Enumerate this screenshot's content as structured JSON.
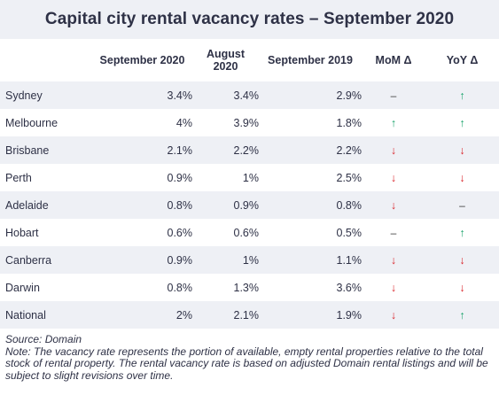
{
  "title": "Capital city rental vacancy rates – September 2020",
  "headers": {
    "city": "",
    "sep2020": "September 2020",
    "aug2020_line1": "August",
    "aug2020_line2": "2020",
    "sep2019": "September 2019",
    "mom": "MoM Δ",
    "yoy": "YoY Δ"
  },
  "rows": [
    {
      "city": "Sydney",
      "sep2020": "3.4%",
      "aug2020": "3.4%",
      "sep2019": "2.9%",
      "mom": "–",
      "yoy": "↑"
    },
    {
      "city": "Melbourne",
      "sep2020": "4%",
      "aug2020": "3.9%",
      "sep2019": "1.8%",
      "mom": "↑",
      "yoy": "↑"
    },
    {
      "city": "Brisbane",
      "sep2020": "2.1%",
      "aug2020": "2.2%",
      "sep2019": "2.2%",
      "mom": "↓",
      "yoy": "↓"
    },
    {
      "city": "Perth",
      "sep2020": "0.9%",
      "aug2020": "1%",
      "sep2019": "2.5%",
      "mom": "↓",
      "yoy": "↓"
    },
    {
      "city": "Adelaide",
      "sep2020": "0.8%",
      "aug2020": "0.9%",
      "sep2019": "0.8%",
      "mom": "↓",
      "yoy": "–"
    },
    {
      "city": "Hobart",
      "sep2020": "0.6%",
      "aug2020": "0.6%",
      "sep2019": "0.5%",
      "mom": "–",
      "yoy": "↑"
    },
    {
      "city": "Canberra",
      "sep2020": "0.9%",
      "aug2020": "1%",
      "sep2019": "1.1%",
      "mom": "↓",
      "yoy": "↓"
    },
    {
      "city": "Darwin",
      "sep2020": "0.8%",
      "aug2020": "1.3%",
      "sep2019": "3.6%",
      "mom": "↓",
      "yoy": "↓"
    },
    {
      "city": "National",
      "sep2020": "2%",
      "aug2020": "2.1%",
      "sep2019": "1.9%",
      "mom": "↓",
      "yoy": "↑"
    }
  ],
  "colors": {
    "up": "#1aa36b",
    "down": "#d9262c",
    "stripe": "#eef0f5"
  },
  "footnote": {
    "source": "Source: Domain",
    "note": "Note: The vacancy rate represents the portion of available, empty rental properties relative to the total stock of rental property. The rental vacancy rate is based on adjusted Domain rental listings and will be subject to slight revisions over time."
  }
}
